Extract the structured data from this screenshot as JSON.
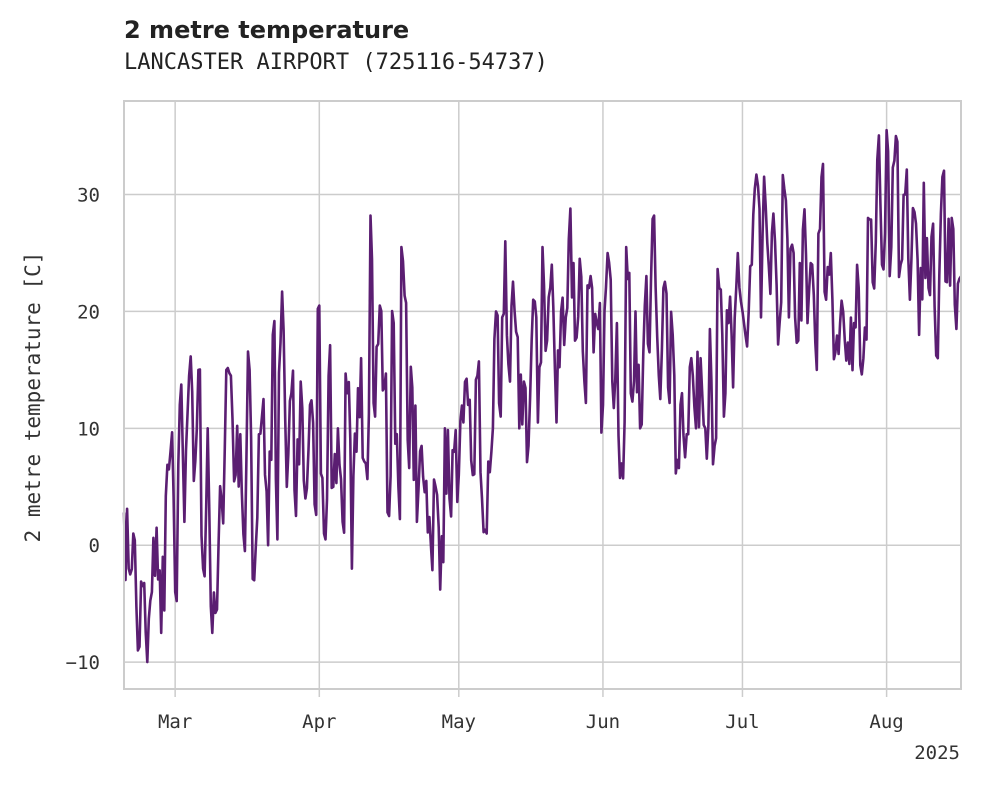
{
  "chart_data": {
    "type": "line",
    "title": "2 metre temperature",
    "subtitle": "LANCASTER AIRPORT (725116-54737)",
    "ylabel": "2 metre temperature [C]",
    "xlabel": "",
    "x_range": [
      "2025-02-18",
      "2025-08-17"
    ],
    "ylim": [
      -12.3,
      38
    ],
    "y_ticks": [
      -10,
      0,
      10,
      20,
      30
    ],
    "x_ticks": [
      {
        "date": "2025-03-01",
        "label": "Mar"
      },
      {
        "date": "2025-04-01",
        "label": "Apr"
      },
      {
        "date": "2025-05-01",
        "label": "May"
      },
      {
        "date": "2025-06-01",
        "label": "Jun"
      },
      {
        "date": "2025-07-01",
        "label": "Jul"
      },
      {
        "date": "2025-08-01",
        "label": "Aug"
      }
    ],
    "year_label": "2025",
    "grid": true,
    "legend": "none",
    "series": [
      {
        "color": "#5b1e72",
        "points": [
          [
            "2025-02-18",
            2.8
          ],
          [
            "2025-02-19",
            -2.0
          ],
          [
            "2025-02-20",
            1.0
          ],
          [
            "2025-02-21",
            -9.0
          ],
          [
            "2025-02-22",
            -3.5
          ],
          [
            "2025-02-23",
            -10.0
          ],
          [
            "2025-02-24",
            -4.0
          ],
          [
            "2025-02-25",
            1.5
          ],
          [
            "2025-02-26",
            -7.5
          ],
          [
            "2025-02-27",
            4.2
          ],
          [
            "2025-02-28",
            8.0
          ],
          [
            "2025-03-01",
            -4.0
          ],
          [
            "2025-03-02",
            12.0
          ],
          [
            "2025-03-03",
            2.0
          ],
          [
            "2025-03-04",
            14.5
          ],
          [
            "2025-03-05",
            5.5
          ],
          [
            "2025-03-06",
            15.0
          ],
          [
            "2025-03-07",
            -2.0
          ],
          [
            "2025-03-08",
            10.0
          ],
          [
            "2025-03-09",
            -7.5
          ],
          [
            "2025-03-10",
            -5.5
          ],
          [
            "2025-03-11",
            3.8
          ],
          [
            "2025-03-12",
            15.0
          ],
          [
            "2025-03-13",
            14.5
          ],
          [
            "2025-03-14",
            6.0
          ],
          [
            "2025-03-15",
            9.5
          ],
          [
            "2025-03-16",
            -0.5
          ],
          [
            "2025-03-17",
            15.0
          ],
          [
            "2025-03-18",
            -3.0
          ],
          [
            "2025-03-19",
            9.5
          ],
          [
            "2025-03-20",
            12.5
          ],
          [
            "2025-03-21",
            0.0
          ],
          [
            "2025-03-22",
            18.0
          ],
          [
            "2025-03-23",
            0.5
          ],
          [
            "2025-03-24",
            21.7
          ],
          [
            "2025-03-25",
            5.0
          ],
          [
            "2025-03-26",
            13.0
          ],
          [
            "2025-03-27",
            2.5
          ],
          [
            "2025-03-28",
            14.0
          ],
          [
            "2025-03-29",
            4.0
          ],
          [
            "2025-03-30",
            12.0
          ],
          [
            "2025-03-31",
            3.5
          ],
          [
            "2025-04-01",
            20.5
          ],
          [
            "2025-04-02",
            1.0
          ],
          [
            "2025-04-03",
            14.5
          ],
          [
            "2025-04-04",
            5.0
          ],
          [
            "2025-04-05",
            10.0
          ],
          [
            "2025-04-06",
            2.0
          ],
          [
            "2025-04-07",
            13.0
          ],
          [
            "2025-04-08",
            -2.0
          ],
          [
            "2025-04-09",
            8.0
          ],
          [
            "2025-04-10",
            16.0
          ],
          [
            "2025-04-11",
            7.0
          ],
          [
            "2025-04-12",
            28.2
          ],
          [
            "2025-04-13",
            11.0
          ],
          [
            "2025-04-14",
            20.5
          ],
          [
            "2025-04-15",
            13.5
          ],
          [
            "2025-04-16",
            2.5
          ],
          [
            "2025-04-17",
            19.0
          ],
          [
            "2025-04-18",
            5.0
          ],
          [
            "2025-04-19",
            24.3
          ],
          [
            "2025-04-20",
            9.0
          ],
          [
            "2025-04-21",
            13.5
          ],
          [
            "2025-04-22",
            2.0
          ],
          [
            "2025-04-23",
            8.5
          ],
          [
            "2025-04-24",
            5.5
          ],
          [
            "2025-04-25",
            0.0
          ],
          [
            "2025-04-26",
            5.0
          ],
          [
            "2025-04-27",
            -3.8
          ],
          [
            "2025-04-28",
            10.0
          ],
          [
            "2025-04-29",
            4.0
          ],
          [
            "2025-04-30",
            8.0
          ],
          [
            "2025-05-01",
            6.0
          ],
          [
            "2025-05-02",
            10.5
          ],
          [
            "2025-05-03",
            12.0
          ],
          [
            "2025-05-04",
            6.0
          ],
          [
            "2025-05-05",
            14.5
          ],
          [
            "2025-05-06",
            4.0
          ],
          [
            "2025-05-07",
            1.0
          ],
          [
            "2025-05-08",
            8.0
          ],
          [
            "2025-05-09",
            20.0
          ],
          [
            "2025-05-10",
            11.0
          ],
          [
            "2025-05-11",
            26.0
          ],
          [
            "2025-05-12",
            14.0
          ],
          [
            "2025-05-13",
            20.0
          ],
          [
            "2025-05-14",
            10.0
          ],
          [
            "2025-05-15",
            14.0
          ],
          [
            "2025-05-16",
            8.5
          ],
          [
            "2025-05-17",
            21.0
          ],
          [
            "2025-05-18",
            10.5
          ],
          [
            "2025-05-19",
            25.5
          ],
          [
            "2025-05-20",
            17.5
          ],
          [
            "2025-05-21",
            24.0
          ],
          [
            "2025-05-22",
            10.5
          ],
          [
            "2025-05-23",
            20.0
          ],
          [
            "2025-05-24",
            19.5
          ],
          [
            "2025-05-25",
            28.8
          ],
          [
            "2025-05-26",
            17.5
          ],
          [
            "2025-05-27",
            24.5
          ],
          [
            "2025-05-28",
            14.0
          ],
          [
            "2025-05-29",
            22.0
          ],
          [
            "2025-05-30",
            16.5
          ],
          [
            "2025-05-31",
            18.5
          ],
          [
            "2025-06-01",
            12.0
          ],
          [
            "2025-06-02",
            25.0
          ],
          [
            "2025-06-03",
            14.0
          ],
          [
            "2025-06-04",
            19.0
          ],
          [
            "2025-06-05",
            7.0
          ],
          [
            "2025-06-06",
            25.5
          ],
          [
            "2025-06-07",
            13.0
          ],
          [
            "2025-06-08",
            20.0
          ],
          [
            "2025-06-09",
            10.0
          ],
          [
            "2025-06-10",
            20.5
          ],
          [
            "2025-06-11",
            16.5
          ],
          [
            "2025-06-12",
            28.2
          ],
          [
            "2025-06-13",
            14.5
          ],
          [
            "2025-06-14",
            22.0
          ],
          [
            "2025-06-15",
            13.5
          ],
          [
            "2025-06-16",
            18.0
          ],
          [
            "2025-06-17",
            7.3
          ],
          [
            "2025-06-18",
            13.0
          ],
          [
            "2025-06-19",
            9.5
          ],
          [
            "2025-06-20",
            16.0
          ],
          [
            "2025-06-21",
            10.0
          ],
          [
            "2025-06-22",
            16.0
          ],
          [
            "2025-06-23",
            10.0
          ],
          [
            "2025-06-24",
            18.5
          ],
          [
            "2025-06-25",
            8.5
          ],
          [
            "2025-06-26",
            22.0
          ],
          [
            "2025-06-27",
            11.0
          ],
          [
            "2025-06-28",
            19.0
          ],
          [
            "2025-06-29",
            13.5
          ],
          [
            "2025-06-30",
            25.0
          ],
          [
            "2025-07-01",
            20.0
          ],
          [
            "2025-07-02",
            17.0
          ],
          [
            "2025-07-03",
            24.0
          ],
          [
            "2025-07-04",
            31.7
          ],
          [
            "2025-07-05",
            19.5
          ],
          [
            "2025-07-06",
            29.0
          ],
          [
            "2025-07-07",
            21.5
          ],
          [
            "2025-07-08",
            26.0
          ],
          [
            "2025-07-09",
            19.0
          ],
          [
            "2025-07-10",
            30.5
          ],
          [
            "2025-07-11",
            19.5
          ],
          [
            "2025-07-12",
            25.0
          ],
          [
            "2025-07-13",
            17.5
          ],
          [
            "2025-07-14",
            27.0
          ],
          [
            "2025-07-15",
            19.0
          ],
          [
            "2025-07-16",
            24.0
          ],
          [
            "2025-07-17",
            15.0
          ],
          [
            "2025-07-18",
            31.5
          ],
          [
            "2025-07-19",
            21.0
          ],
          [
            "2025-07-20",
            25.0
          ],
          [
            "2025-07-21",
            16.5
          ],
          [
            "2025-07-22",
            19.0
          ],
          [
            "2025-07-23",
            17.5
          ],
          [
            "2025-07-24",
            15.5
          ],
          [
            "2025-07-25",
            19.0
          ],
          [
            "2025-07-26",
            22.0
          ],
          [
            "2025-07-27",
            16.0
          ],
          [
            "2025-07-28",
            28.0
          ],
          [
            "2025-07-29",
            22.5
          ],
          [
            "2025-07-30",
            33.0
          ],
          [
            "2025-07-31",
            24.0
          ],
          [
            "2025-08-01",
            35.5
          ],
          [
            "2025-08-02",
            25.5
          ],
          [
            "2025-08-03",
            35.0
          ],
          [
            "2025-08-04",
            24.0
          ],
          [
            "2025-08-05",
            30.0
          ],
          [
            "2025-08-06",
            21.0
          ],
          [
            "2025-08-07",
            28.5
          ],
          [
            "2025-08-08",
            18.0
          ],
          [
            "2025-08-09",
            31.0
          ],
          [
            "2025-08-10",
            22.0
          ],
          [
            "2025-08-11",
            27.5
          ],
          [
            "2025-08-12",
            16.0
          ],
          [
            "2025-08-13",
            31.5
          ],
          [
            "2025-08-14",
            22.5
          ],
          [
            "2025-08-15",
            28.0
          ],
          [
            "2025-08-16",
            18.5
          ],
          [
            "2025-08-17",
            23.0
          ]
        ]
      }
    ]
  }
}
